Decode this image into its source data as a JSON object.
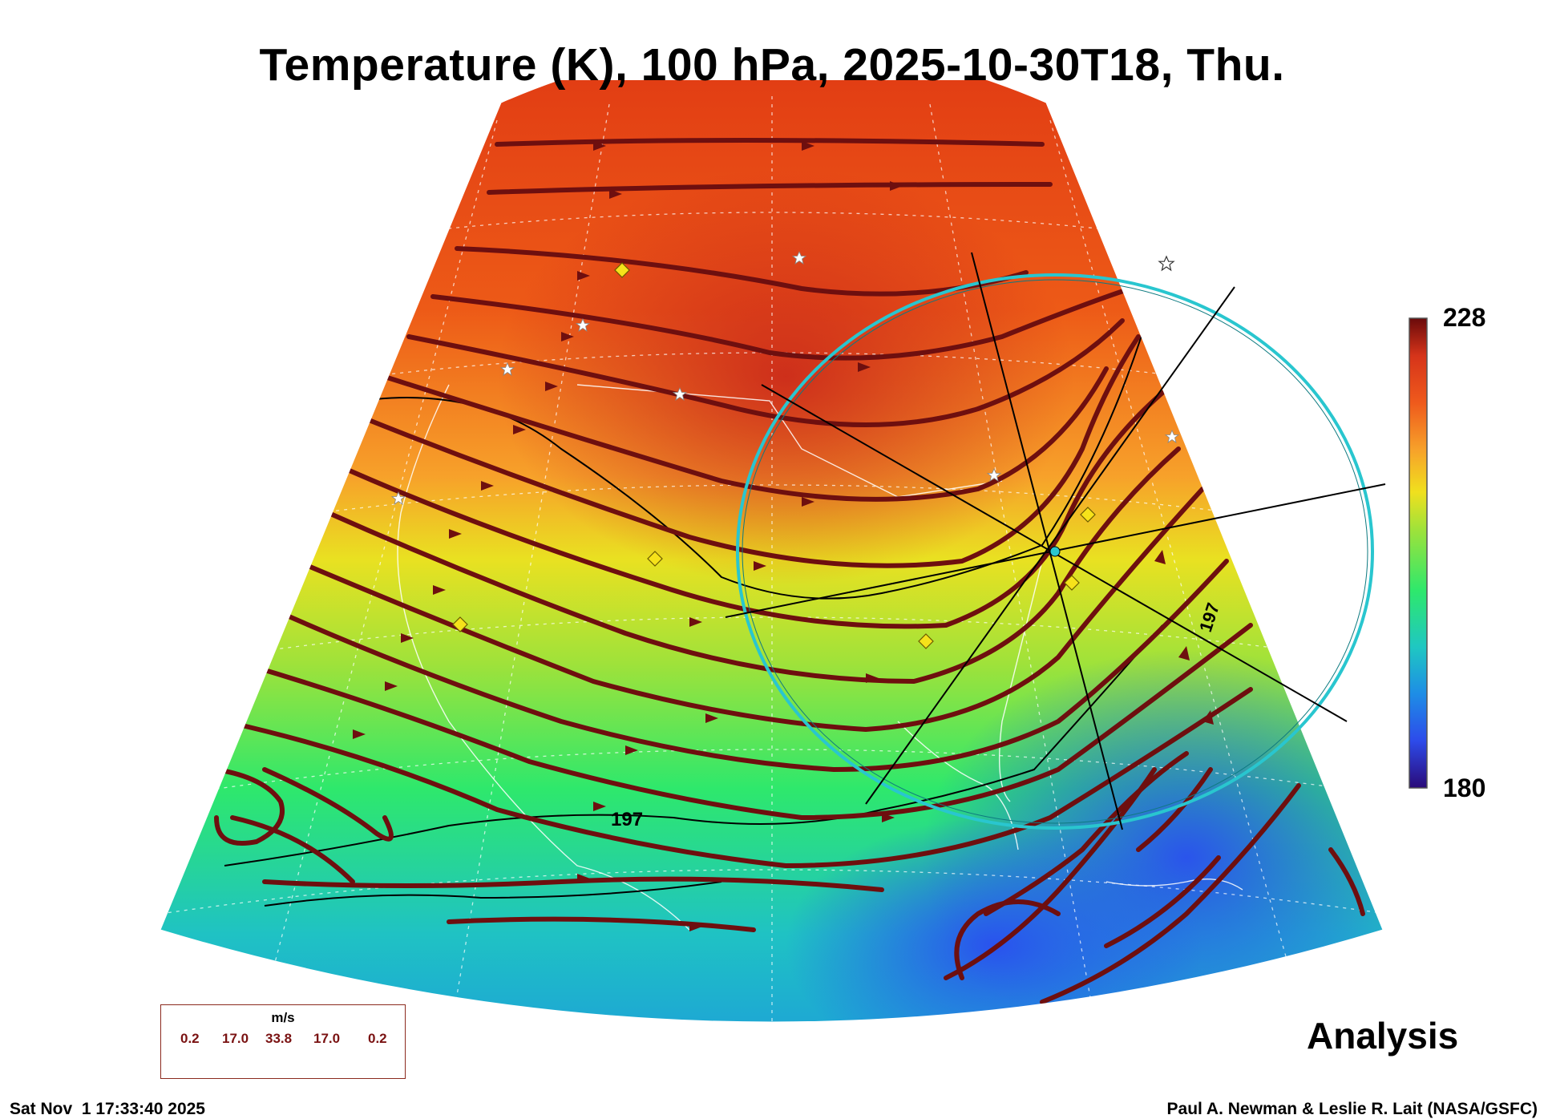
{
  "title": "Temperature (K), 100 hPa, 2025-10-30T18, Thu.",
  "colorbar": {
    "max_label": "228",
    "min_label": "180",
    "colors": [
      "#2a0a78",
      "#2d4bea",
      "#1e8de6",
      "#1fc7c2",
      "#2ee86c",
      "#9fe23a",
      "#f0e01e",
      "#f7a12a",
      "#ef5a1c",
      "#d6341a",
      "#6a0a0a"
    ]
  },
  "contour_labels": [
    "197",
    "197"
  ],
  "stream_color": "#6e0f0f",
  "analysis_label": "Analysis",
  "legend": {
    "unit": "m/s",
    "values": [
      "0.2",
      "17.0",
      "33.8",
      "17.0",
      "0.2"
    ]
  },
  "footer": {
    "date": "Sat Nov  1 17:33:40 2025",
    "credit": "Paul A. Newman & Leslie R. Lait (NASA/GSFC)"
  },
  "markers": {
    "star_color": "#ffffff",
    "diamond_color": "#f6e21a",
    "ring_color": "#29c6cf"
  }
}
